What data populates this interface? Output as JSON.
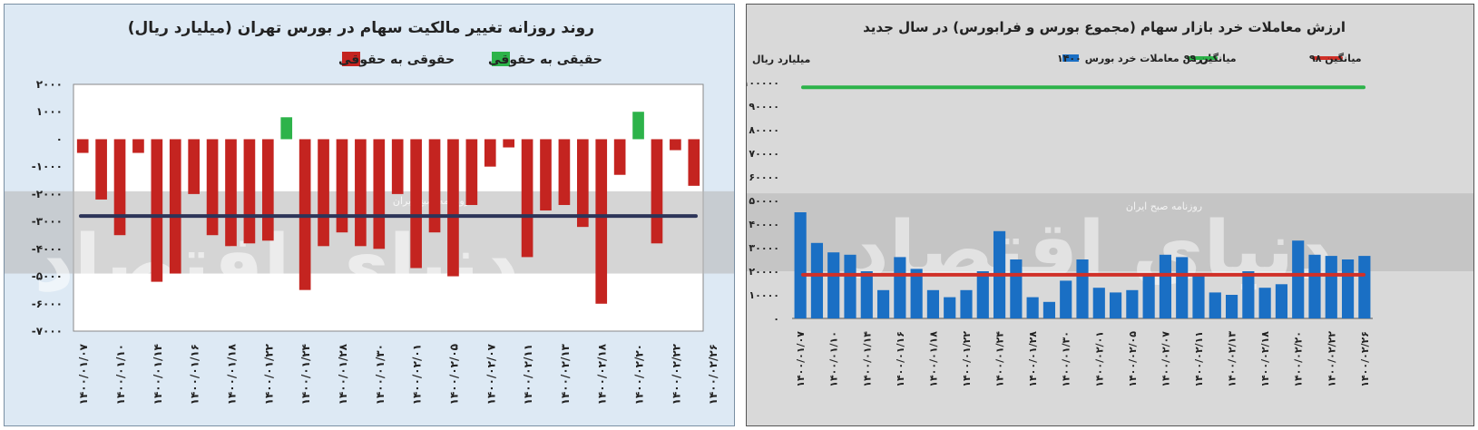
{
  "charts": {
    "left": {
      "title": "روند روزانه تغییر مالکیت سهام در بورس تهران (میلیارد ریال)",
      "watermark": "دنیای اقتصاد",
      "watermark_sub": "روزنامه صبح ایران"
    },
    "right": {
      "title": "ارزش معاملات خرد بازار سهام (مجموع بورس و فرابورس) در سال جدید",
      "unit_label": "میلیارد ریال",
      "watermark": "دنیای اقتصاد",
      "watermark_sub": "روزنامه صبح ایران"
    }
  },
  "chart_data": [
    {
      "type": "bar",
      "title": "روند روزانه تغییر مالکیت سهام در بورس تهران (میلیارد ریال)",
      "ylim": [
        -7000,
        2000
      ],
      "yticks": [
        2000,
        1000,
        0,
        -1000,
        -2000,
        -3000,
        -4000,
        -5000,
        -6000,
        -7000
      ],
      "ytick_labels": [
        "۲۰۰۰",
        "۱۰۰۰",
        "۰",
        "-۱۰۰۰",
        "-۲۰۰۰",
        "-۳۰۰۰",
        "-۴۰۰۰",
        "-۵۰۰۰",
        "-۶۰۰۰",
        "-۷۰۰۰"
      ],
      "x_tick_labels": [
        "۱۴۰۰/۰۱/۰۷",
        "۱۴۰۰/۰۱/۱۰",
        "۱۴۰۰/۰۱/۱۴",
        "۱۴۰۰/۰۱/۱۶",
        "۱۴۰۰/۰۱/۱۸",
        "۱۴۰۰/۰۱/۲۲",
        "۱۴۰۰/۰۱/۲۴",
        "۱۴۰۰/۰۱/۲۸",
        "۱۴۰۰/۰۱/۳۰",
        "۱۴۰۰/۰۲/۰۱",
        "۱۴۰۰/۰۲/۰۵",
        "۱۴۰۰/۰۲/۰۷",
        "۱۴۰۰/۰۲/۱۱",
        "۱۴۰۰/۰۲/۱۳",
        "۱۴۰۰/۰۲/۱۸",
        "۱۴۰۰/۰۲/۲۰",
        "۱۴۰۰/۰۲/۲۲",
        "۱۴۰۰/۰۲/۲۶"
      ],
      "x_tick_every": 2,
      "values": [
        -500,
        -2200,
        -3500,
        -500,
        -5200,
        -4900,
        -2000,
        -3500,
        -3900,
        -3800,
        -3700,
        800,
        -5500,
        -3900,
        -3400,
        -3900,
        -4000,
        -2000,
        -4700,
        -3400,
        -5000,
        -2400,
        -1000,
        -300,
        -4300,
        -2600,
        -2400,
        -3200,
        -6000,
        -1300,
        1000,
        -3800,
        -400,
        -1700
      ],
      "series": [
        {
          "name": "حقوقی به حقوقی",
          "color": "#c42420"
        },
        {
          "name": "حقیقی به حقوقی",
          "color": "#2db34a"
        }
      ],
      "reference_line": {
        "value": -2800,
        "color": "#2d3559"
      },
      "legend_position": "top-center"
    },
    {
      "type": "bar",
      "title": "ارزش معاملات خرد بازار سهام (مجموع بورس و فرابورس) در سال جدید",
      "ylabel": "میلیارد ریال",
      "ylim": [
        0,
        100000
      ],
      "yticks": [
        100000,
        90000,
        80000,
        70000,
        60000,
        50000,
        40000,
        30000,
        20000,
        10000,
        0
      ],
      "ytick_labels": [
        "۱۰۰۰۰۰",
        "۹۰۰۰۰",
        "۸۰۰۰۰",
        "۷۰۰۰۰",
        "۶۰۰۰۰",
        "۵۰۰۰۰",
        "۴۰۰۰۰",
        "۳۰۰۰۰",
        "۲۰۰۰۰",
        "۱۰۰۰۰",
        "۰"
      ],
      "x_tick_labels": [
        "۱۴۰۰/۰۱/۰۷",
        "۱۴۰۰/۰۱/۱۰",
        "۱۴۰۰/۰۱/۱۴",
        "۱۴۰۰/۰۱/۱۶",
        "۱۴۰۰/۰۱/۱۸",
        "۱۴۰۰/۰۱/۲۲",
        "۱۴۰۰/۰۱/۲۴",
        "۱۴۰۰/۰۱/۲۸",
        "۱۴۰۰/۰۱/۳۰",
        "۱۴۰۰/۰۲/۰۱",
        "۱۴۰۰/۰۲/۰۵",
        "۱۴۰۰/۰۲/۰۷",
        "۱۴۰۰/۰۲/۱۱",
        "۱۴۰۰/۰۲/۱۳",
        "۱۴۰۰/۰۲/۱۸",
        "۱۴۰۰/۰۲/۲۰",
        "۱۴۰۰/۰۲/۲۲",
        "۱۴۰۰/۰۲/۲۶"
      ],
      "x_tick_every": 2,
      "series": [
        {
          "name": "ارزش معاملات خرد بورس ۱۴۰۰",
          "color": "#1a6fc4",
          "values": [
            45000,
            32000,
            28000,
            27000,
            20000,
            12000,
            26000,
            21000,
            12000,
            9000,
            12000,
            20000,
            37000,
            25000,
            9000,
            7000,
            16000,
            25000,
            13000,
            11000,
            12000,
            19000,
            27000,
            26000,
            18000,
            11000,
            10000,
            20000,
            13000,
            14500,
            33000,
            27000,
            26500,
            25000,
            26500
          ]
        },
        {
          "name": "میانگین ۹۹",
          "color": "#2db34a",
          "value": 98000
        },
        {
          "name": "میانگین ۹۸",
          "color": "#d03028",
          "value": 18500
        }
      ],
      "legend_position": "top"
    }
  ]
}
